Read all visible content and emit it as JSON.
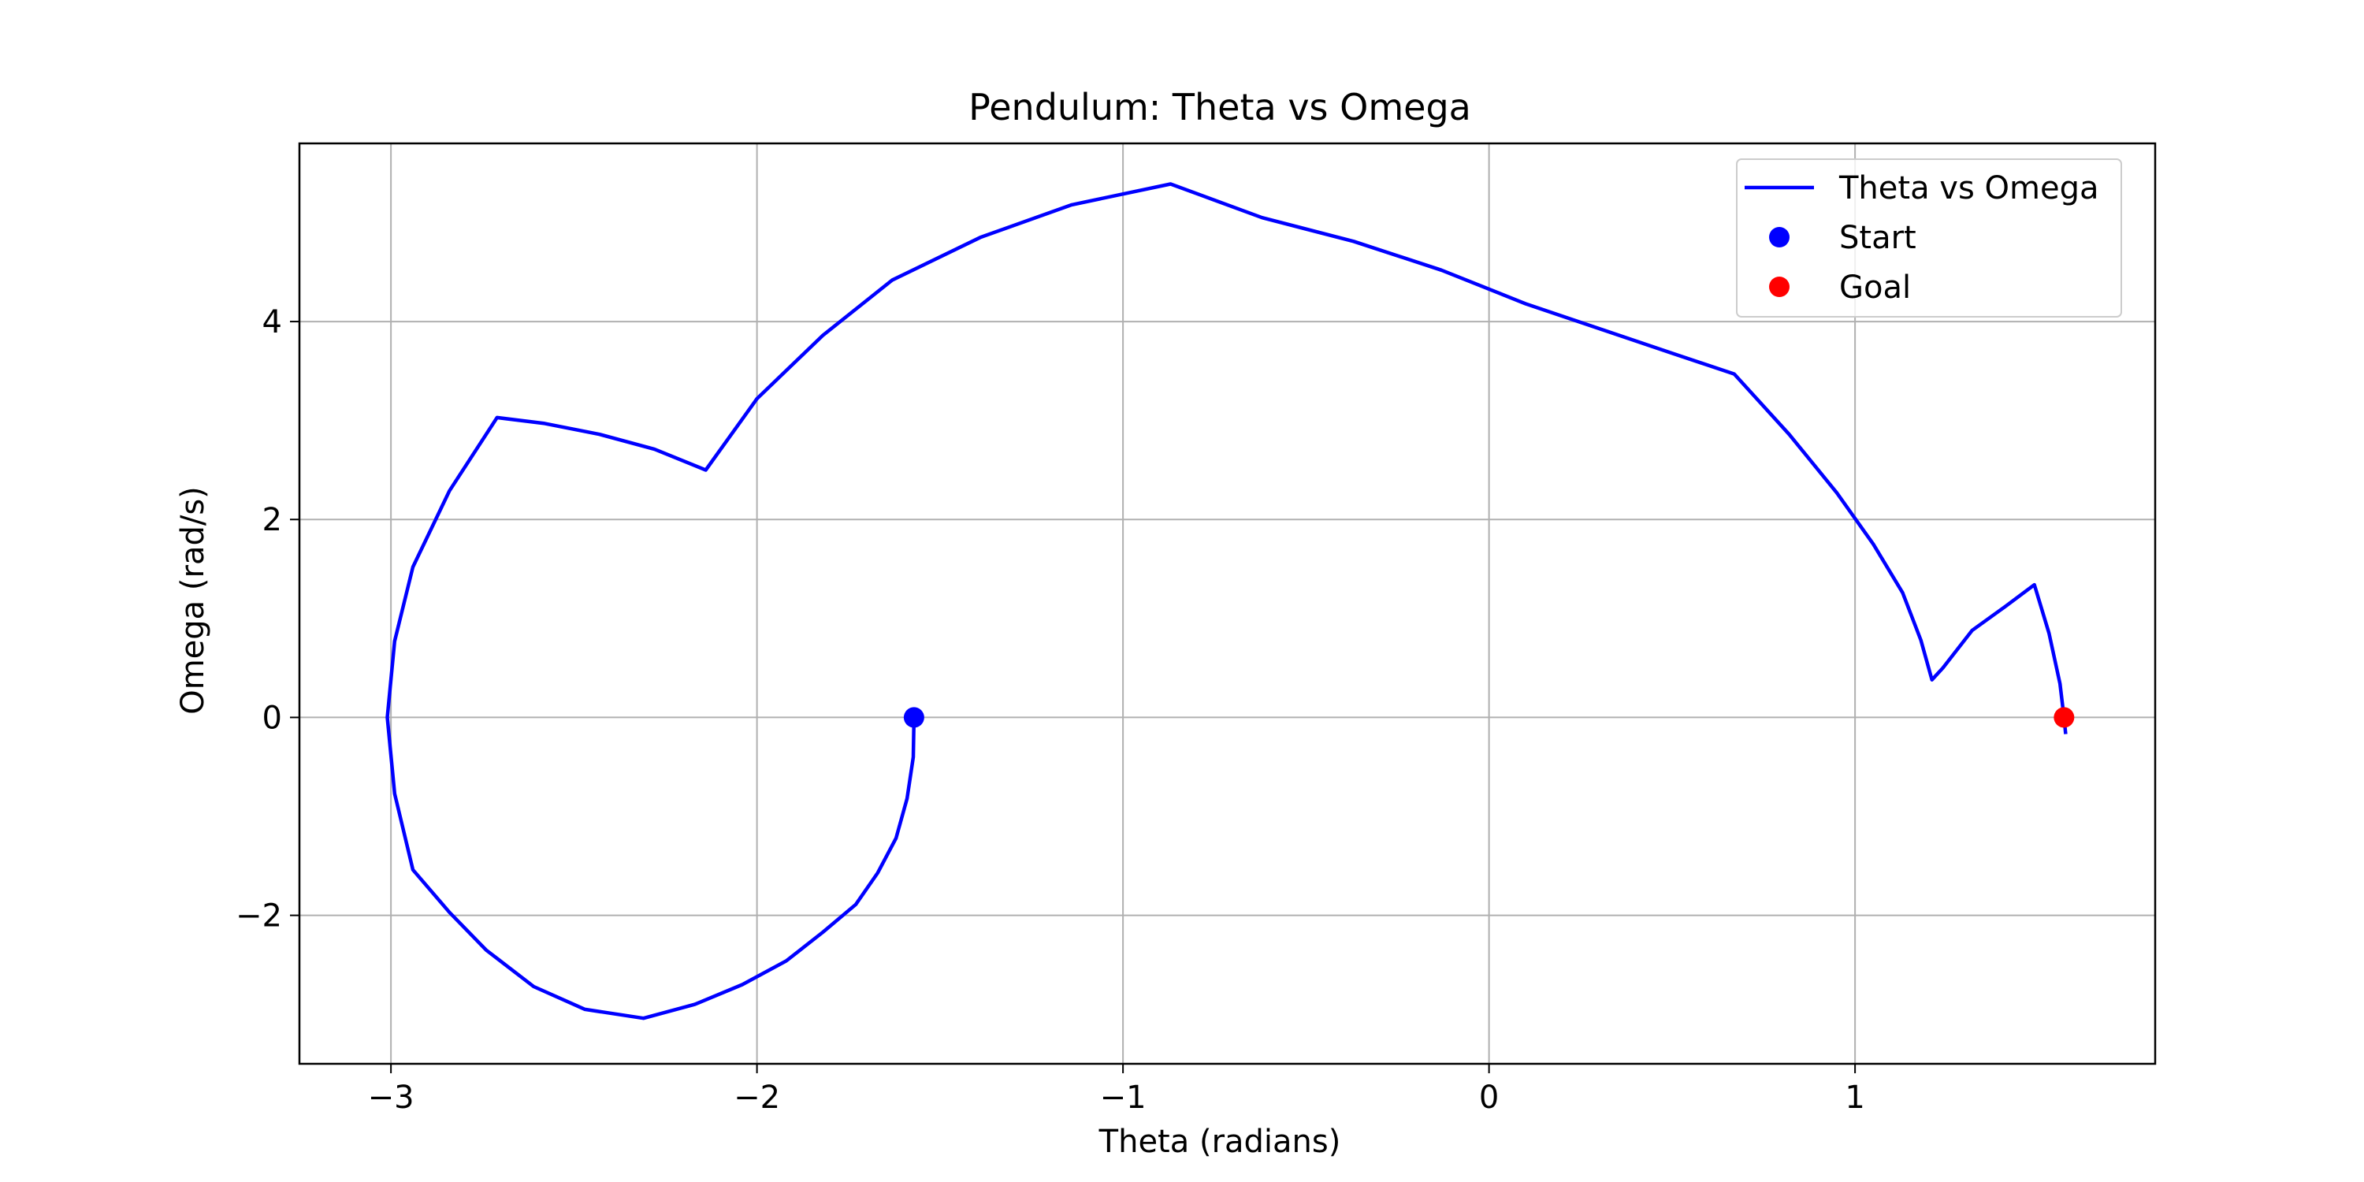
{
  "chart_data": {
    "type": "line",
    "title": "Pendulum: Theta vs Omega",
    "xlabel": "Theta (radians)",
    "ylabel": "Omega (rad/s)",
    "xlim": [
      -3.25,
      1.82
    ],
    "ylim": [
      -3.5,
      5.8
    ],
    "xticks": [
      -3,
      -2,
      -1,
      0,
      1
    ],
    "xtick_labels": [
      "−3",
      "−2",
      "−1",
      "0",
      "1"
    ],
    "yticks": [
      -2,
      0,
      2,
      4
    ],
    "ytick_labels": [
      "−2",
      "0",
      "2",
      "4"
    ],
    "grid": true,
    "legend_position": "top-right",
    "legend": [
      {
        "label": "Theta vs Omega",
        "kind": "line",
        "color": "#0000ff"
      },
      {
        "label": "Start",
        "kind": "marker",
        "color": "#0000ff"
      },
      {
        "label": "Goal",
        "kind": "marker",
        "color": "#ff0000"
      }
    ],
    "series": [
      {
        "name": "Theta vs Omega",
        "color": "#0000ff",
        "x": [
          -1.571,
          -1.573,
          -1.59,
          -1.62,
          -1.67,
          -1.73,
          -1.82,
          -1.92,
          -2.04,
          -2.17,
          -2.31,
          -2.47,
          -2.61,
          -2.74,
          -2.84,
          -2.94,
          -2.99,
          -3.01,
          -2.99,
          -2.94,
          -2.84,
          -2.71,
          -2.58,
          -2.43,
          -2.28,
          -2.14,
          -2.0,
          -1.82,
          -1.63,
          -1.39,
          -1.14,
          -0.87,
          -0.62,
          -0.37,
          -0.13,
          0.1,
          0.3,
          0.5,
          0.67,
          0.82,
          0.95,
          1.05,
          1.13,
          1.18,
          1.21,
          1.24,
          1.32,
          1.41,
          1.49,
          1.53,
          1.56,
          1.571,
          1.575
        ],
        "y": [
          0,
          -0.4,
          -0.82,
          -1.22,
          -1.57,
          -1.89,
          -2.17,
          -2.46,
          -2.7,
          -2.9,
          -3.04,
          -2.95,
          -2.72,
          -2.35,
          -1.97,
          -1.54,
          -0.77,
          0,
          0.77,
          1.52,
          2.29,
          3.03,
          2.97,
          2.86,
          2.71,
          2.5,
          3.22,
          3.86,
          4.42,
          4.85,
          5.18,
          5.39,
          5.05,
          4.81,
          4.52,
          4.18,
          3.93,
          3.68,
          3.47,
          2.86,
          2.27,
          1.75,
          1.26,
          0.78,
          0.38,
          0.5,
          0.88,
          1.12,
          1.34,
          0.85,
          0.34,
          0,
          -0.15
        ]
      }
    ],
    "markers": [
      {
        "label": "Start",
        "x": -1.571,
        "y": 0,
        "color": "#0000ff"
      },
      {
        "label": "Goal",
        "x": 1.571,
        "y": 0,
        "color": "#ff0000"
      }
    ]
  }
}
